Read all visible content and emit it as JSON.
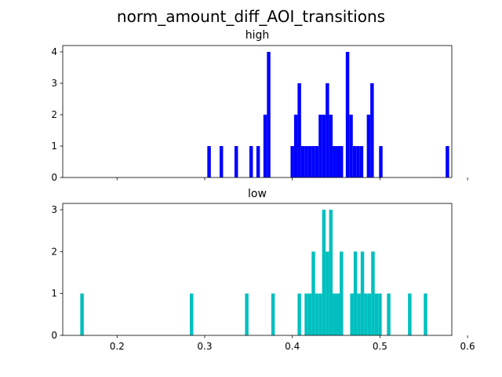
{
  "figure": {
    "title": "norm_amount_diff_AOI_transitions"
  },
  "chart_data": [
    {
      "type": "bar",
      "subtype": "histogram",
      "title": "high",
      "color": "#0000ff",
      "xlim": [
        0.138,
        0.582
      ],
      "ylim": [
        0,
        4.2
      ],
      "yticks": [
        0,
        1,
        2,
        3,
        4
      ],
      "xticks": [
        0.2,
        0.3,
        0.4,
        0.5,
        0.6
      ],
      "show_xtick_labels": false,
      "grid": false,
      "bins": [
        {
          "x": 0.305,
          "count": 1
        },
        {
          "x": 0.319,
          "count": 1
        },
        {
          "x": 0.336,
          "count": 1
        },
        {
          "x": 0.353,
          "count": 1
        },
        {
          "x": 0.361,
          "count": 1
        },
        {
          "x": 0.369,
          "count": 2
        },
        {
          "x": 0.373,
          "count": 4
        },
        {
          "x": 0.4,
          "count": 1
        },
        {
          "x": 0.404,
          "count": 2
        },
        {
          "x": 0.408,
          "count": 3
        },
        {
          "x": 0.412,
          "count": 1
        },
        {
          "x": 0.416,
          "count": 1
        },
        {
          "x": 0.42,
          "count": 1
        },
        {
          "x": 0.424,
          "count": 1
        },
        {
          "x": 0.428,
          "count": 1
        },
        {
          "x": 0.432,
          "count": 2
        },
        {
          "x": 0.436,
          "count": 2
        },
        {
          "x": 0.44,
          "count": 3
        },
        {
          "x": 0.444,
          "count": 2
        },
        {
          "x": 0.448,
          "count": 1
        },
        {
          "x": 0.452,
          "count": 1
        },
        {
          "x": 0.456,
          "count": 1
        },
        {
          "x": 0.463,
          "count": 4
        },
        {
          "x": 0.467,
          "count": 2
        },
        {
          "x": 0.471,
          "count": 1
        },
        {
          "x": 0.475,
          "count": 1
        },
        {
          "x": 0.479,
          "count": 1
        },
        {
          "x": 0.487,
          "count": 2
        },
        {
          "x": 0.491,
          "count": 3
        },
        {
          "x": 0.501,
          "count": 1
        },
        {
          "x": 0.577,
          "count": 1
        }
      ],
      "bin_width": 0.004
    },
    {
      "type": "bar",
      "subtype": "histogram",
      "title": "low",
      "color": "#00bfbf",
      "xlim": [
        0.138,
        0.582
      ],
      "ylim": [
        0,
        3.15
      ],
      "yticks": [
        0,
        1,
        2,
        3
      ],
      "xticks": [
        0.2,
        0.3,
        0.4,
        0.5,
        0.6
      ],
      "xtick_labels": [
        "0.2",
        "0.3",
        "0.4",
        "0.5",
        "0.6"
      ],
      "show_xtick_labels": true,
      "grid": false,
      "bins": [
        {
          "x": 0.16,
          "count": 1
        },
        {
          "x": 0.285,
          "count": 1
        },
        {
          "x": 0.348,
          "count": 1
        },
        {
          "x": 0.378,
          "count": 1
        },
        {
          "x": 0.408,
          "count": 1
        },
        {
          "x": 0.416,
          "count": 1
        },
        {
          "x": 0.42,
          "count": 1
        },
        {
          "x": 0.424,
          "count": 2
        },
        {
          "x": 0.428,
          "count": 1
        },
        {
          "x": 0.432,
          "count": 1
        },
        {
          "x": 0.436,
          "count": 3
        },
        {
          "x": 0.44,
          "count": 2
        },
        {
          "x": 0.444,
          "count": 3
        },
        {
          "x": 0.448,
          "count": 1
        },
        {
          "x": 0.452,
          "count": 1
        },
        {
          "x": 0.456,
          "count": 2
        },
        {
          "x": 0.468,
          "count": 1
        },
        {
          "x": 0.472,
          "count": 2
        },
        {
          "x": 0.476,
          "count": 1
        },
        {
          "x": 0.48,
          "count": 2
        },
        {
          "x": 0.484,
          "count": 1
        },
        {
          "x": 0.488,
          "count": 1
        },
        {
          "x": 0.492,
          "count": 2
        },
        {
          "x": 0.496,
          "count": 1
        },
        {
          "x": 0.5,
          "count": 1
        },
        {
          "x": 0.51,
          "count": 1
        },
        {
          "x": 0.534,
          "count": 1
        },
        {
          "x": 0.552,
          "count": 1
        }
      ],
      "bin_width": 0.004
    }
  ]
}
